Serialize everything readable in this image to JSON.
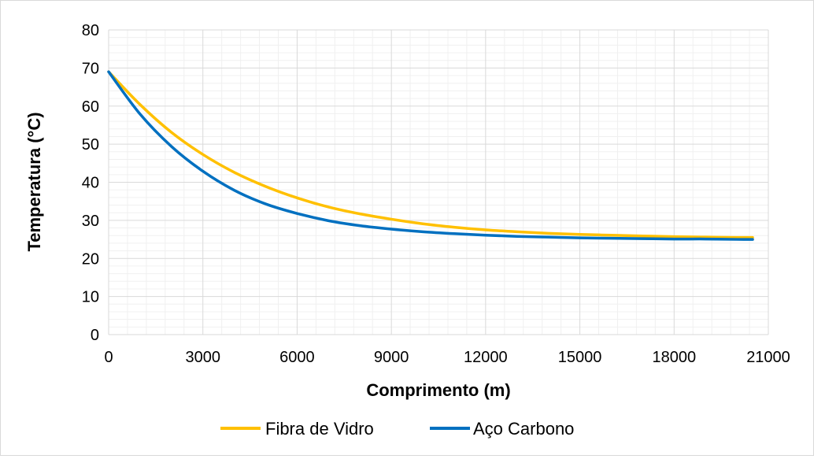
{
  "chart_data": {
    "type": "line",
    "title": "",
    "xlabel": "Comprimento (m)",
    "ylabel": "Temperatura (°C)",
    "xlim": [
      0,
      21000
    ],
    "ylim": [
      0,
      80
    ],
    "x_ticks": [
      "0",
      "3000",
      "6000",
      "9000",
      "12000",
      "15000",
      "18000",
      "21000"
    ],
    "y_ticks": [
      "0",
      "10",
      "20",
      "30",
      "40",
      "50",
      "60",
      "70",
      "80"
    ],
    "grid": {
      "major": true,
      "minor": true
    },
    "legend_position": "bottom",
    "series": [
      {
        "name": "Fibra de Vidro",
        "color": "#FFC000",
        "x": [
          0,
          1000,
          2000,
          3000,
          4000,
          5000,
          6000,
          7000,
          8000,
          9000,
          10000,
          11000,
          12000,
          13000,
          14000,
          15000,
          16000,
          17000,
          18000,
          19000,
          20000,
          20500
        ],
        "values": [
          69,
          60.4,
          53.1,
          47.3,
          42.6,
          38.9,
          35.9,
          33.5,
          31.7,
          30.3,
          29.1,
          28.2,
          27.5,
          27.0,
          26.6,
          26.3,
          26.1,
          25.9,
          25.7,
          25.6,
          25.5,
          25.5
        ]
      },
      {
        "name": "Aço Carbono",
        "color": "#0070C0",
        "x": [
          0,
          1000,
          2000,
          3000,
          4000,
          5000,
          6000,
          7000,
          8000,
          9000,
          10000,
          11000,
          12000,
          13000,
          14000,
          15000,
          16000,
          17000,
          18000,
          19000,
          20000,
          20500
        ],
        "values": [
          69,
          57.9,
          49.4,
          42.9,
          37.9,
          34.3,
          31.8,
          29.9,
          28.6,
          27.7,
          27.0,
          26.5,
          26.1,
          25.8,
          25.6,
          25.4,
          25.3,
          25.2,
          25.1,
          25.1,
          25.0,
          25.0
        ]
      }
    ]
  }
}
